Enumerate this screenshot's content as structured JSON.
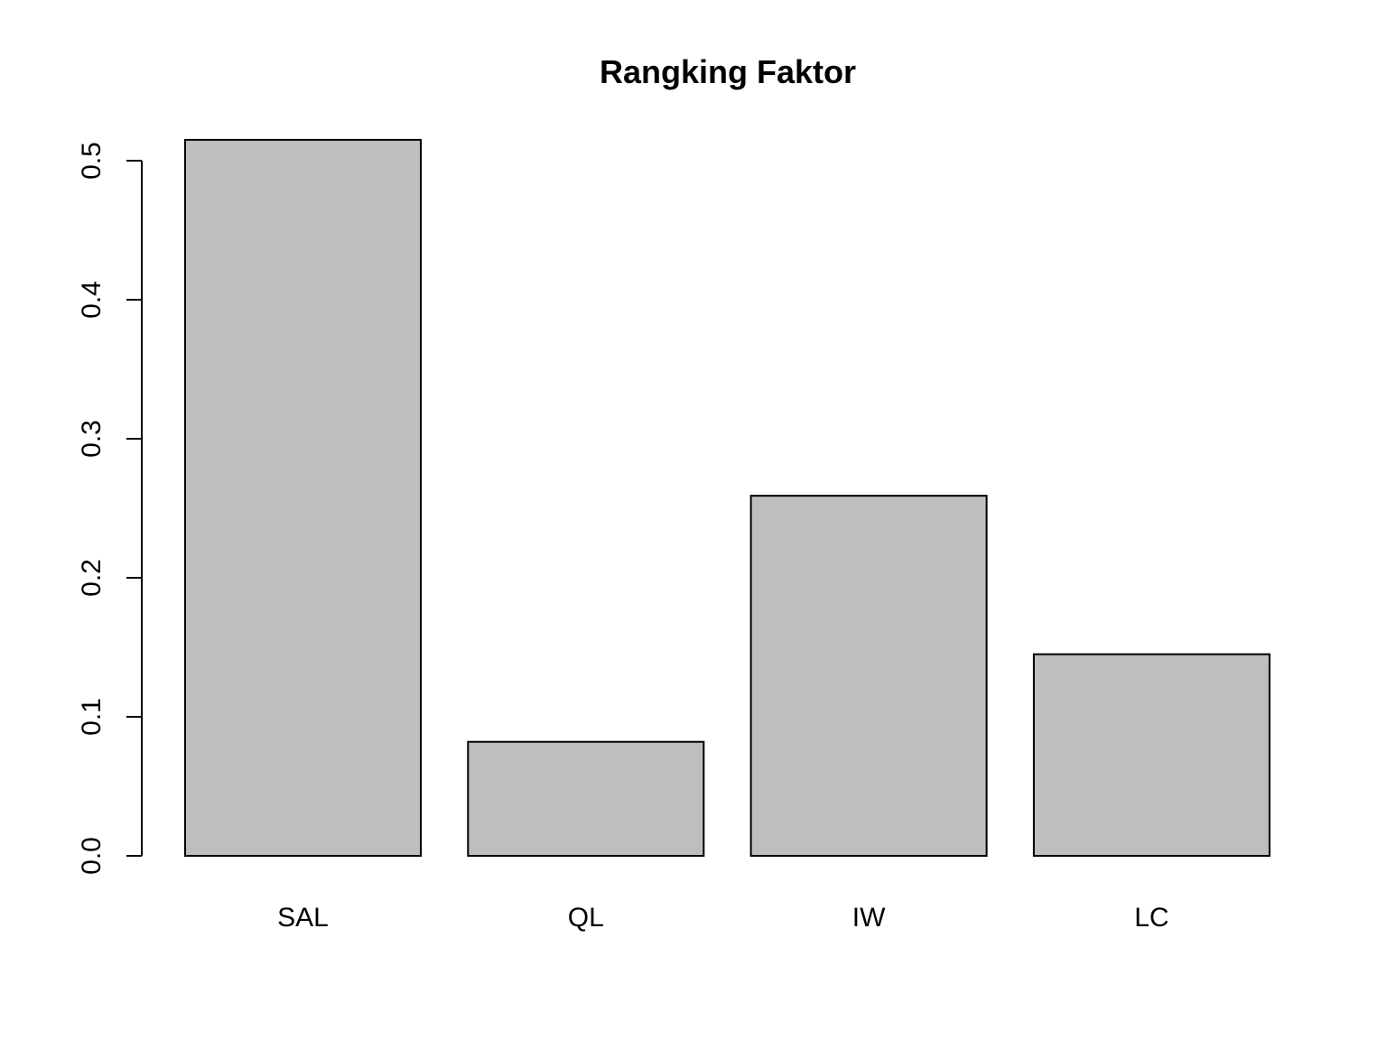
{
  "chart_data": {
    "type": "bar",
    "title": "Rangking Faktor",
    "xlabel": "",
    "ylabel": "",
    "categories": [
      "SAL",
      "QL",
      "IW",
      "LC"
    ],
    "values": [
      0.515,
      0.082,
      0.259,
      0.145
    ],
    "ylim": [
      0,
      0.5
    ],
    "yticks": [
      "0.0",
      "0.1",
      "0.2",
      "0.3",
      "0.4",
      "0.5"
    ],
    "bar_color": "#bebebe",
    "grid": false,
    "legend": "none"
  }
}
